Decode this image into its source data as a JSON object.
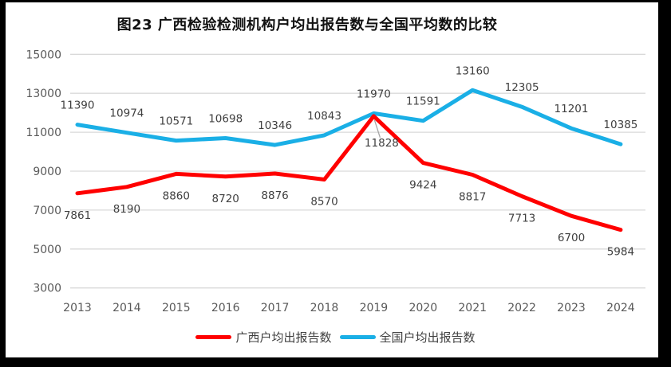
{
  "title": "图23 广西检验检测机构户均出报告数与全国平均数的比较",
  "legend": [
    {
      "label": "广西户均出报告数",
      "color": "#FF0000"
    },
    {
      "label": "全国户均出报告数",
      "color": "#1AAFE6"
    }
  ],
  "chart_data": {
    "type": "line",
    "title": "图23 广西检验检测机构户均出报告数与全国平均数的比较",
    "categories": [
      "2013",
      "2014",
      "2015",
      "2016",
      "2017",
      "2018",
      "2019",
      "2020",
      "2021",
      "2022",
      "2023",
      "2024"
    ],
    "series": [
      {
        "name": "广西户均出报告数",
        "color": "#FF0000",
        "values": [
          7861,
          8190,
          8860,
          8720,
          8876,
          8570,
          11828,
          9424,
          8817,
          7713,
          6700,
          5984
        ]
      },
      {
        "name": "全国户均出报告数",
        "color": "#1AAFE6",
        "values": [
          11390,
          10974,
          10571,
          10698,
          10346,
          10843,
          11970,
          11591,
          13160,
          12305,
          11201,
          10385
        ]
      }
    ],
    "ylim": [
      3000,
      15000
    ],
    "y_ticks": [
      3000,
      5000,
      7000,
      9000,
      11000,
      13000,
      15000
    ],
    "grid": "horizontal-only",
    "data_labels": true,
    "legend_position": "bottom"
  },
  "colors": {
    "gridline": "#D9D9D9",
    "axis_text": "#595959",
    "data_label": "#404040",
    "leader_line": "#A6A6A6",
    "frame": "#000000"
  }
}
